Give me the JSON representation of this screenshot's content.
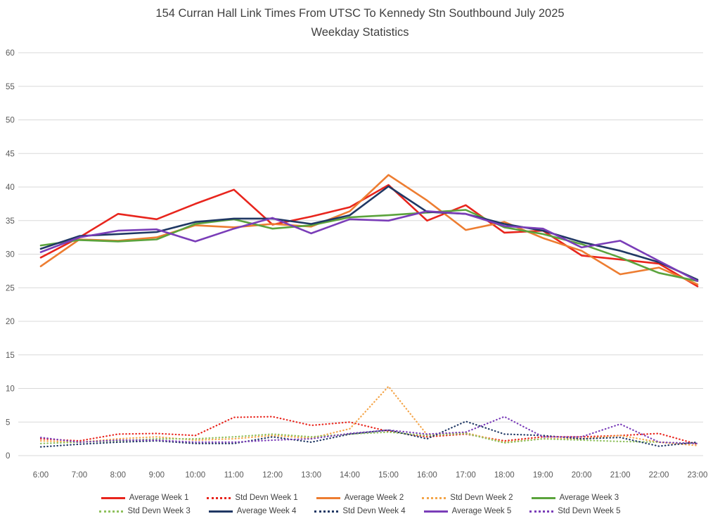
{
  "title": {
    "line1": "154 Curran Hall Link Times From UTSC To Kennedy Stn Southbound July 2025",
    "line2": "Weekday Statistics"
  },
  "axis_colors": {
    "grid": "#D9D9D9",
    "tick_label": "#595959"
  },
  "chart_data": {
    "type": "line",
    "title": "154 Curran Hall Link Times From UTSC To Kennedy Stn Southbound July 2025",
    "subtitle": "Weekday Statistics",
    "xlabel": "",
    "ylabel": "",
    "ylim": [
      0,
      60
    ],
    "ytick_step": 5,
    "grid": true,
    "legend_position": "bottom",
    "x": [
      "6:00",
      "7:00",
      "8:00",
      "9:00",
      "10:00",
      "11:00",
      "12:00",
      "13:00",
      "14:00",
      "15:00",
      "16:00",
      "17:00",
      "18:00",
      "19:00",
      "20:00",
      "21:00",
      "22:00",
      "23:00"
    ],
    "series": [
      {
        "name": "Average Week 1",
        "style": "solid",
        "color": "#E8251D",
        "values": [
          29.5,
          32.5,
          36.0,
          35.2,
          37.5,
          39.6,
          34.4,
          35.6,
          37.0,
          40.3,
          35.0,
          37.3,
          33.2,
          33.5,
          29.8,
          29.2,
          28.6,
          25.2
        ]
      },
      {
        "name": "Std Devn Week 1",
        "style": "dotted",
        "color": "#E8251D",
        "values": [
          2.5,
          2.2,
          3.2,
          3.3,
          3.0,
          5.7,
          5.8,
          4.5,
          5.0,
          3.6,
          2.8,
          3.2,
          2.2,
          2.8,
          2.8,
          3.0,
          3.3,
          1.7
        ]
      },
      {
        "name": "Average Week 2",
        "style": "solid",
        "color": "#ED7D31",
        "values": [
          28.2,
          32.2,
          32.0,
          32.5,
          34.3,
          34.0,
          34.5,
          34.1,
          36.4,
          41.8,
          38.0,
          33.6,
          34.8,
          32.4,
          30.5,
          27.0,
          28.0,
          25.5
        ]
      },
      {
        "name": "Std Devn Week 2",
        "style": "dotted",
        "color": "#F4A54A",
        "values": [
          2.2,
          2.0,
          2.5,
          2.8,
          2.3,
          2.5,
          3.0,
          2.6,
          4.0,
          10.3,
          3.1,
          3.4,
          2.0,
          2.5,
          2.5,
          3.0,
          2.0,
          1.5
        ]
      },
      {
        "name": "Average Week 3",
        "style": "solid",
        "color": "#5BA33C",
        "values": [
          31.3,
          32.1,
          31.9,
          32.2,
          34.5,
          35.2,
          33.8,
          34.3,
          35.5,
          35.8,
          36.2,
          36.6,
          34.0,
          33.0,
          31.5,
          29.5,
          27.2,
          26.0
        ]
      },
      {
        "name": "Std Devn Week 3",
        "style": "dotted",
        "color": "#8FC15E",
        "values": [
          1.8,
          2.0,
          2.2,
          2.5,
          2.5,
          2.8,
          3.2,
          2.8,
          3.2,
          3.5,
          3.0,
          3.3,
          1.9,
          2.5,
          2.3,
          2.1,
          2.0,
          1.8
        ]
      },
      {
        "name": "Average Week 4",
        "style": "solid",
        "color": "#203864",
        "values": [
          30.8,
          32.7,
          33.0,
          33.3,
          34.8,
          35.3,
          35.3,
          34.5,
          35.8,
          40.1,
          36.3,
          36.0,
          34.5,
          33.5,
          31.8,
          30.5,
          28.8,
          26.2
        ]
      },
      {
        "name": "Std Devn Week 4",
        "style": "dotted",
        "color": "#203864",
        "values": [
          1.3,
          1.7,
          2.0,
          2.2,
          1.8,
          1.8,
          2.8,
          2.0,
          3.2,
          3.8,
          2.5,
          5.1,
          3.2,
          3.0,
          2.5,
          2.7,
          1.4,
          2.0
        ]
      },
      {
        "name": "Average Week 5",
        "style": "solid",
        "color": "#7A3DB8",
        "values": [
          30.3,
          32.5,
          33.5,
          33.7,
          31.9,
          33.8,
          35.4,
          33.1,
          35.2,
          35.0,
          36.4,
          36.0,
          34.2,
          33.8,
          31.0,
          32.0,
          29.0,
          26.0
        ]
      },
      {
        "name": "Std Devn Week 5",
        "style": "dotted",
        "color": "#7A3DB8",
        "values": [
          2.7,
          2.0,
          2.3,
          2.3,
          2.0,
          2.0,
          2.3,
          2.5,
          3.3,
          3.8,
          3.2,
          3.5,
          5.8,
          2.8,
          2.8,
          4.7,
          2.0,
          1.8
        ]
      }
    ],
    "legend_items_per_row": 5
  }
}
